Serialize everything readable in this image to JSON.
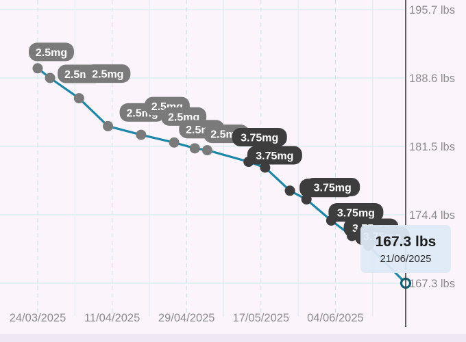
{
  "chart_data": {
    "type": "line",
    "title": "",
    "xlabel": "",
    "ylabel": "",
    "y_unit": "lbs",
    "y_ticks": [
      "195.7 lbs",
      "188.6 lbs",
      "181.5 lbs",
      "174.4 lbs",
      "167.3 lbs"
    ],
    "y_tick_values": [
      195.7,
      188.6,
      181.5,
      174.4,
      167.3
    ],
    "ylim": [
      163.0,
      195.7
    ],
    "x_ticks": [
      "24/03/2025",
      "11/04/2025",
      "29/04/2025",
      "17/05/2025",
      "04/06/2025"
    ],
    "xlim": [
      "2025-03-24",
      "2025-06-21"
    ],
    "grid": true,
    "series": [
      {
        "color": "#1a86a8",
        "points": [
          {
            "x": "2025-03-24",
            "y": 189.6,
            "label": "2.5mg"
          },
          {
            "x": "2025-03-27",
            "y": 188.6,
            "label": "2.5mg"
          },
          {
            "x": "2025-04-03",
            "y": 186.5,
            "label": "2.5mg"
          },
          {
            "x": "2025-04-10",
            "y": 183.6,
            "label": "2.5mg"
          },
          {
            "x": "2025-04-18",
            "y": 182.7,
            "label": "2.5mg"
          },
          {
            "x": "2025-04-26",
            "y": 181.9,
            "label": "2.5mg"
          },
          {
            "x": "2025-05-01",
            "y": 181.3,
            "label": "2.5mg"
          },
          {
            "x": "2025-05-04",
            "y": 181.1,
            "label": "2.5mg"
          },
          {
            "x": "2025-05-14",
            "y": 179.9,
            "label": "3.75mg"
          },
          {
            "x": "2025-05-18",
            "y": 179.3,
            "label": "3.75mg"
          },
          {
            "x": "2025-05-24",
            "y": 176.9,
            "label": "3.75mg"
          },
          {
            "x": "2025-05-28",
            "y": 176.0,
            "label": "3.75mg"
          },
          {
            "x": "2025-06-03",
            "y": 173.8,
            "label": "3.75mg"
          },
          {
            "x": "2025-06-08",
            "y": 172.2,
            "label": "3.75mg"
          },
          {
            "x": "2025-06-12",
            "y": 171.2,
            "label": "3.75mg"
          },
          {
            "x": "2025-06-21",
            "y": 167.3,
            "label": ""
          }
        ]
      }
    ],
    "marker_colors": {
      "2.5mg": "#7a7a7a",
      "3.75mg": "#3d3d3d"
    },
    "tooltip": {
      "value": "167.3 lbs",
      "date": "21/06/2025"
    }
  }
}
